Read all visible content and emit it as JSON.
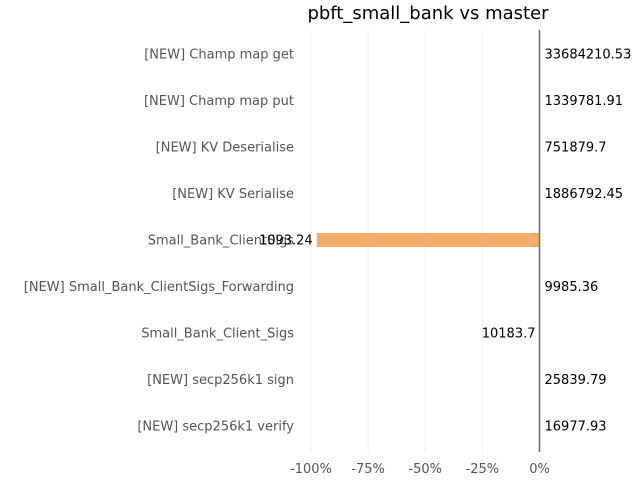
{
  "chart_data": {
    "type": "bar",
    "orientation": "horizontal",
    "title": "pbft_small_bank vs master",
    "xlabel": "",
    "ylabel": "",
    "xlim": [
      -100,
      0
    ],
    "x_ticks": [
      "-100%",
      "-75%",
      "-50%",
      "-25%",
      "0%"
    ],
    "x_tick_values": [
      -100,
      -75,
      -50,
      -25,
      0
    ],
    "grid": true,
    "bar_color": "#f5ad6e",
    "categories": [
      "[NEW] Champ map get",
      "[NEW] Champ map put",
      "[NEW] KV Deserialise",
      "[NEW] KV Serialise",
      "Small_Bank_ClientSigs",
      "[NEW] Small_Bank_ClientSigs_Forwarding",
      "Small_Bank_Client_Sigs",
      "[NEW] secp256k1 sign",
      "[NEW] secp256k1 verify"
    ],
    "values": [
      0,
      0,
      0,
      0,
      -97.5,
      0,
      0,
      0,
      0
    ],
    "value_labels": [
      "33684210.53",
      "1339781.91",
      "751879.7",
      "1886792.45",
      "1093.24",
      "9985.36",
      "10183.7",
      "25839.79",
      "16977.93"
    ],
    "label_side": [
      "right",
      "right",
      "right",
      "right",
      "left",
      "right",
      "left",
      "right",
      "right"
    ]
  }
}
